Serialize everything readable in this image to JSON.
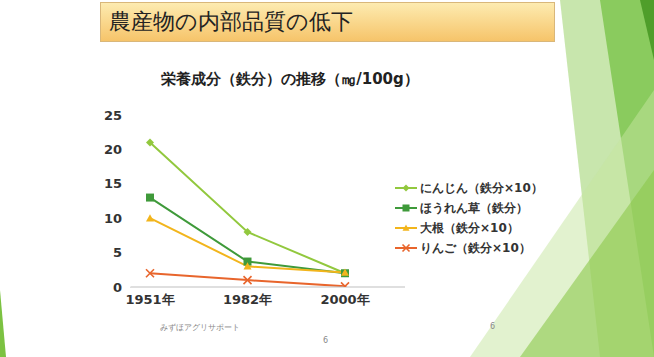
{
  "slide": {
    "heading": "農産物の内部品質の低下",
    "footer": "みずほアグリサポート",
    "page_numbers": [
      "6",
      "6"
    ]
  },
  "chart_data": {
    "type": "line",
    "title": "栄養成分（鉄分）の推移（㎎/100g）",
    "categories": [
      "1951年",
      "1982年",
      "2000年"
    ],
    "series": [
      {
        "name": "にんじん（鉄分×10）",
        "color": "#92c83e",
        "marker": "diamond",
        "values": [
          21,
          8,
          2
        ]
      },
      {
        "name": "ほうれん草（鉄分）",
        "color": "#3f9a3a",
        "marker": "square",
        "values": [
          13,
          3.7,
          2
        ]
      },
      {
        "name": "大根（鉄分×10）",
        "color": "#f2b51c",
        "marker": "triangle",
        "values": [
          10,
          3,
          2.1
        ]
      },
      {
        "name": "りんご（鉄分×10）",
        "color": "#e8652c",
        "marker": "x",
        "values": [
          2,
          1,
          0.1
        ]
      }
    ],
    "ylim": [
      0,
      25
    ],
    "yticks": [
      0,
      5,
      10,
      15,
      20,
      25
    ],
    "grid": false,
    "legend": "right"
  }
}
